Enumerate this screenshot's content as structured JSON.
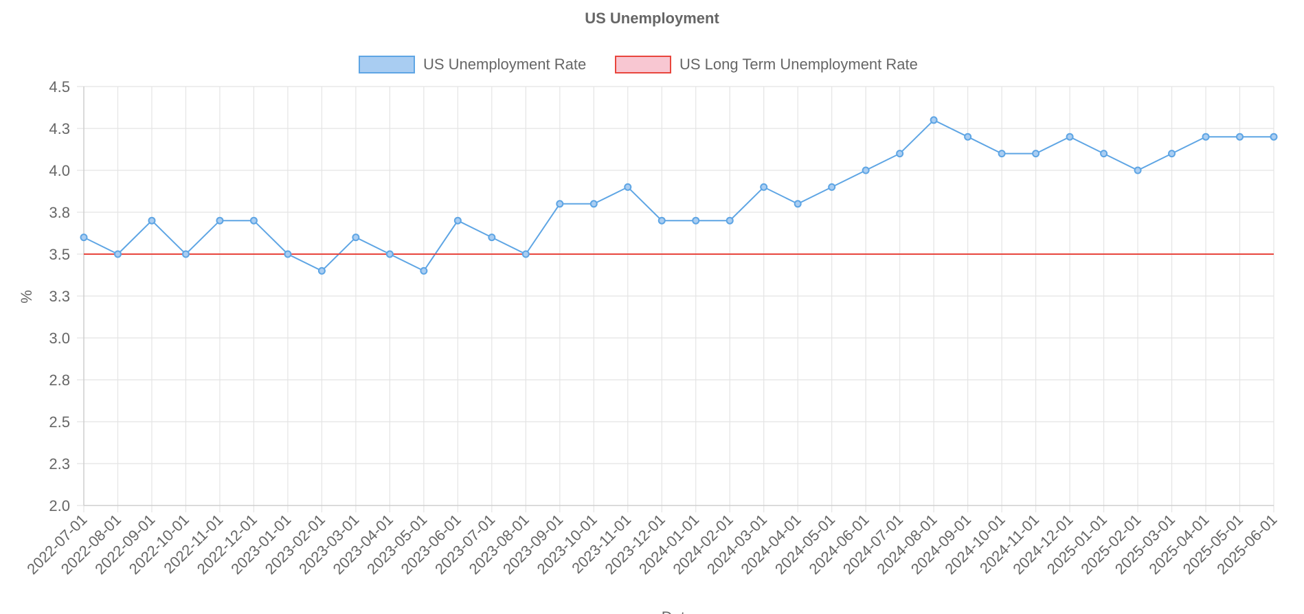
{
  "chart_data": {
    "type": "line",
    "title": "US Unemployment",
    "xlabel": "Date",
    "ylabel": "%",
    "ylim": [
      2.0,
      4.5
    ],
    "y_ticks": [
      "2.0",
      "2.3",
      "2.5",
      "2.8",
      "3.0",
      "3.3",
      "3.5",
      "3.8",
      "4.0",
      "4.3",
      "4.5"
    ],
    "grid": true,
    "legend_position": "top",
    "categories": [
      "2022-07-01",
      "2022-08-01",
      "2022-09-01",
      "2022-10-01",
      "2022-11-01",
      "2022-12-01",
      "2023-01-01",
      "2023-02-01",
      "2023-03-01",
      "2023-04-01",
      "2023-05-01",
      "2023-06-01",
      "2023-07-01",
      "2023-08-01",
      "2023-09-01",
      "2023-10-01",
      "2023-11-01",
      "2023-12-01",
      "2024-01-01",
      "2024-02-01",
      "2024-03-01",
      "2024-04-01",
      "2024-05-01",
      "2024-06-01",
      "2024-07-01",
      "2024-08-01",
      "2024-09-01",
      "2024-10-01",
      "2024-11-01",
      "2024-12-01",
      "2025-01-01",
      "2025-02-01",
      "2025-03-01",
      "2025-04-01",
      "2025-05-01",
      "2025-06-01"
    ],
    "series": [
      {
        "name": "US Unemployment Rate",
        "color": "#5ea5e4",
        "fill": "#a9cdf2",
        "values": [
          3.6,
          3.5,
          3.7,
          3.5,
          3.7,
          3.7,
          3.5,
          3.4,
          3.6,
          3.5,
          3.4,
          3.7,
          3.6,
          3.5,
          3.8,
          3.8,
          3.9,
          3.7,
          3.7,
          3.7,
          3.9,
          3.8,
          3.9,
          4.0,
          4.1,
          4.3,
          4.2,
          4.1,
          4.1,
          4.2,
          4.1,
          4.0,
          4.1,
          4.2,
          4.2,
          4.2
        ]
      },
      {
        "name": "US Long Term Unemployment Rate",
        "color": "#e8453c",
        "fill": "#f8c7d2",
        "values": [
          3.5,
          3.5,
          3.5,
          3.5,
          3.5,
          3.5,
          3.5,
          3.5,
          3.5,
          3.5,
          3.5,
          3.5,
          3.5,
          3.5,
          3.5,
          3.5,
          3.5,
          3.5,
          3.5,
          3.5,
          3.5,
          3.5,
          3.5,
          3.5,
          3.5,
          3.5,
          3.5,
          3.5,
          3.5,
          3.5,
          3.5,
          3.5,
          3.5,
          3.5,
          3.5,
          3.5
        ]
      }
    ]
  }
}
